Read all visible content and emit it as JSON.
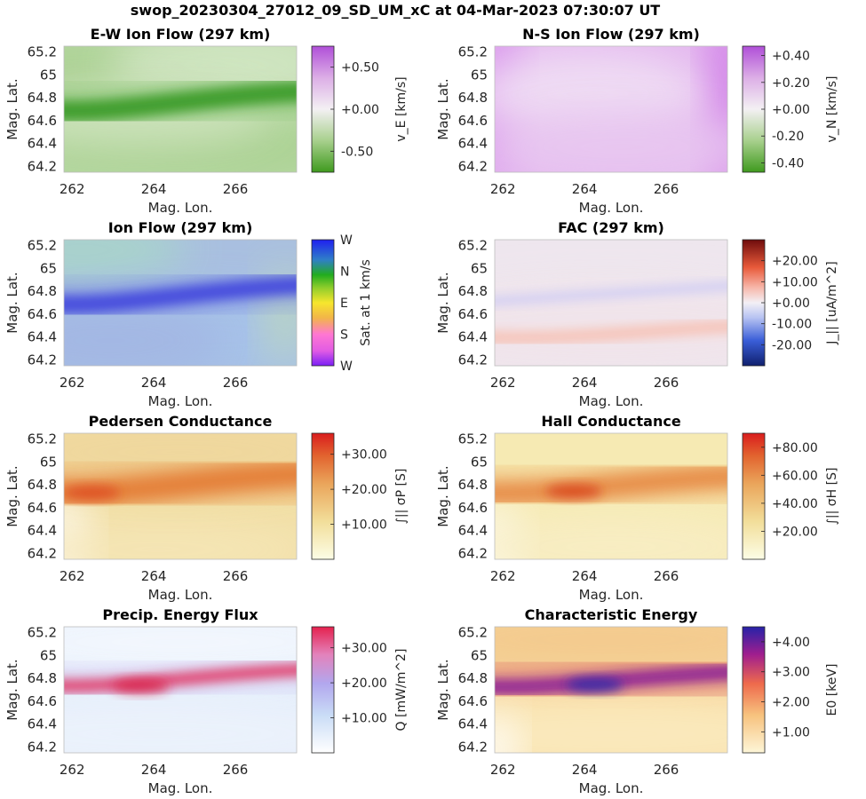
{
  "figure": {
    "title": "swop_20230304_27012_09_SD_UM_xC at 04-Mar-2023 07:30:07 UT"
  },
  "chart_data": [
    {
      "id": "ew",
      "type": "heatmap",
      "title": "E-W Ion Flow (297 km)",
      "xlabel": "Mag. Lon.",
      "ylabel": "Mag. Lat.",
      "x_ticks": [
        "262",
        "264",
        "266"
      ],
      "y_ticks": [
        "65.2",
        "65",
        "64.8",
        "64.6",
        "64.4",
        "64.2"
      ],
      "xlim": [
        261.8,
        267.5
      ],
      "ylim": [
        64.15,
        65.25
      ],
      "colormap": "green-white-purple",
      "band": {
        "lat_west": 64.72,
        "lat_east": 64.86
      },
      "colorbar": {
        "label": "v_E [km/s]",
        "range": [
          -0.75,
          0.75
        ],
        "ticks": [
          "+0.50",
          "+0.00",
          "-0.50"
        ],
        "tick_values": [
          0.5,
          0.0,
          -0.5
        ]
      }
    },
    {
      "id": "ns",
      "type": "heatmap",
      "title": "N-S Ion Flow (297 km)",
      "xlabel": "Mag. Lon.",
      "ylabel": "Mag. Lat.",
      "x_ticks": [
        "262",
        "264",
        "266"
      ],
      "y_ticks": [
        "65.2",
        "65",
        "64.8",
        "64.6",
        "64.4",
        "64.2"
      ],
      "xlim": [
        261.8,
        267.5
      ],
      "ylim": [
        64.15,
        65.25
      ],
      "colormap": "green-white-purple",
      "colorbar": {
        "label": "v_N [km/s]",
        "range": [
          -0.47,
          0.47
        ],
        "ticks": [
          "+0.40",
          "+0.20",
          "+0.00",
          "-0.20",
          "-0.40"
        ],
        "tick_values": [
          0.4,
          0.2,
          0.0,
          -0.2,
          -0.4
        ]
      }
    },
    {
      "id": "flow",
      "type": "heatmap",
      "title": "Ion Flow (297 km)",
      "xlabel": "Mag. Lon.",
      "ylabel": "Mag. Lat.",
      "x_ticks": [
        "262",
        "264",
        "266"
      ],
      "y_ticks": [
        "65.2",
        "65",
        "64.8",
        "64.6",
        "64.4",
        "64.2"
      ],
      "xlim": [
        261.8,
        267.5
      ],
      "ylim": [
        64.15,
        65.25
      ],
      "colormap": "direction (hue)",
      "band": {
        "lat_west": 64.72,
        "lat_east": 64.86
      },
      "colorbar": {
        "label": "Sat. at 1 km/s",
        "ticks": [
          "W",
          "N",
          "E",
          "S",
          "W"
        ]
      }
    },
    {
      "id": "fac",
      "type": "heatmap",
      "title": "FAC (297 km)",
      "xlabel": "Mag. Lon.",
      "ylabel": "Mag. Lat.",
      "x_ticks": [
        "262",
        "264",
        "266"
      ],
      "y_ticks": [
        "65.2",
        "65",
        "64.8",
        "64.6",
        "64.4",
        "64.2"
      ],
      "xlim": [
        261.8,
        267.5
      ],
      "ylim": [
        64.15,
        65.25
      ],
      "colormap": "blue-white-red",
      "colorbar": {
        "label": "J_|| [uA/m^2]",
        "range": [
          -30,
          30
        ],
        "ticks": [
          "+20.00",
          "+10.00",
          "+0.00",
          "-10.00",
          "-20.00"
        ],
        "tick_values": [
          20,
          10,
          0,
          -10,
          -20
        ]
      }
    },
    {
      "id": "ped",
      "type": "heatmap",
      "title": "Pedersen Conductance",
      "xlabel": "Mag. Lon.",
      "ylabel": "Mag. Lat.",
      "x_ticks": [
        "262",
        "264",
        "266"
      ],
      "y_ticks": [
        "65.2",
        "65",
        "64.8",
        "64.6",
        "64.4",
        "64.2"
      ],
      "xlim": [
        261.8,
        267.5
      ],
      "ylim": [
        64.15,
        65.25
      ],
      "colormap": "yellow-orange-red",
      "band": {
        "lat_west": 64.76,
        "lat_east": 64.9
      },
      "colorbar": {
        "label": "∫|| σP [S]",
        "range": [
          0,
          36
        ],
        "ticks": [
          "+30.00",
          "+20.00",
          "+10.00"
        ],
        "tick_values": [
          30,
          20,
          10
        ]
      }
    },
    {
      "id": "hall",
      "type": "heatmap",
      "title": "Hall Conductance",
      "xlabel": "Mag. Lon.",
      "ylabel": "Mag. Lat.",
      "x_ticks": [
        "262",
        "264",
        "266"
      ],
      "y_ticks": [
        "65.2",
        "65",
        "64.8",
        "64.6",
        "64.4",
        "64.2"
      ],
      "xlim": [
        261.8,
        267.5
      ],
      "ylim": [
        64.15,
        65.25
      ],
      "colormap": "yellow-orange-red",
      "band": {
        "lat_west": 64.76,
        "lat_east": 64.88
      },
      "colorbar": {
        "label": "∫|| σH [S]",
        "range": [
          0,
          90
        ],
        "ticks": [
          "+80.00",
          "+60.00",
          "+40.00",
          "+20.00"
        ],
        "tick_values": [
          80,
          60,
          40,
          20
        ]
      }
    },
    {
      "id": "q",
      "type": "heatmap",
      "title": "Precip. Energy Flux",
      "xlabel": "Mag. Lon.",
      "ylabel": "Mag. Lat.",
      "x_ticks": [
        "262",
        "264",
        "266"
      ],
      "y_ticks": [
        "65.2",
        "65",
        "64.8",
        "64.6",
        "64.4",
        "64.2"
      ],
      "xlim": [
        261.8,
        267.5
      ],
      "ylim": [
        64.15,
        65.25
      ],
      "colormap": "white-blue-red",
      "band": {
        "lat_west": 64.77,
        "lat_east": 64.88
      },
      "colorbar": {
        "label": "Q [mW/m^2]",
        "range": [
          0,
          36
        ],
        "ticks": [
          "+30.00",
          "+20.00",
          "+10.00"
        ],
        "tick_values": [
          30,
          20,
          10
        ]
      }
    },
    {
      "id": "e0",
      "type": "heatmap",
      "title": "Characteristic Energy",
      "xlabel": "Mag. Lon.",
      "ylabel": "Mag. Lat.",
      "x_ticks": [
        "262",
        "264",
        "266"
      ],
      "y_ticks": [
        "65.2",
        "65",
        "64.8",
        "64.6",
        "64.4",
        "64.2"
      ],
      "xlim": [
        261.8,
        267.5
      ],
      "ylim": [
        64.15,
        65.25
      ],
      "colormap": "yellow-orange-purple-blue",
      "band": {
        "lat_west": 64.76,
        "lat_east": 64.86
      },
      "colorbar": {
        "label": "E0 [keV]",
        "range": [
          0.3,
          4.5
        ],
        "ticks": [
          "+4.00",
          "+3.00",
          "+2.00",
          "+1.00"
        ],
        "tick_values": [
          4,
          3,
          2,
          1
        ]
      }
    }
  ]
}
